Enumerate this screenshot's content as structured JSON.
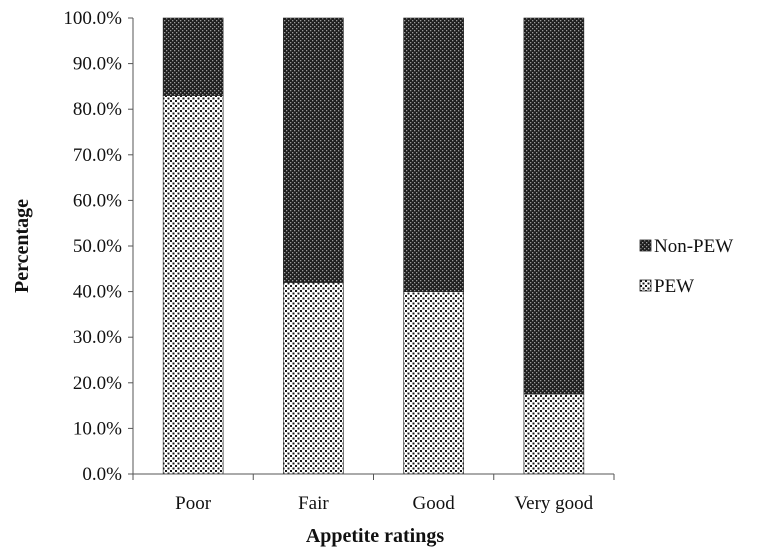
{
  "chart_data": {
    "type": "bar",
    "stacked": true,
    "categories": [
      "Poor",
      "Fair",
      "Good",
      "Very good"
    ],
    "series": [
      {
        "name": "PEW",
        "values": [
          83.0,
          42.0,
          40.0,
          17.5
        ],
        "pattern": "dotted-light"
      },
      {
        "name": "Non-PEW",
        "values": [
          17.0,
          58.0,
          60.0,
          82.5
        ],
        "pattern": "dotted-dark"
      }
    ],
    "xlabel": "Appetite ratings",
    "ylabel": "Percentage",
    "ylim": [
      0,
      100
    ],
    "yticks": [
      "0.0%",
      "10.0%",
      "20.0%",
      "30.0%",
      "40.0%",
      "50.0%",
      "60.0%",
      "70.0%",
      "80.0%",
      "90.0%",
      "100.0%"
    ],
    "grid": false,
    "legend": {
      "position": "right",
      "entries": [
        "Non-PEW",
        "PEW"
      ]
    }
  }
}
